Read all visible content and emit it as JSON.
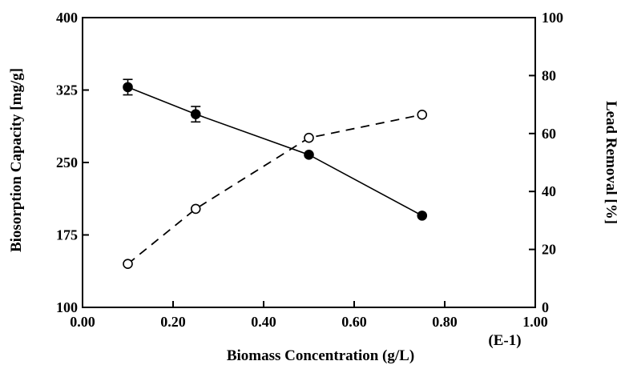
{
  "chart_data": {
    "type": "line",
    "xlabel": "Biomass Concentration (g/L)",
    "x_multiplier_label": "(E-1)",
    "ylabel_left": "Biosorption Capacity [mg/g]",
    "ylabel_right": "Lead Removal [%]",
    "xlim": [
      0,
      1
    ],
    "ylim_left": [
      100,
      400
    ],
    "ylim_right": [
      0,
      100
    ],
    "x_ticks": [
      0,
      0.2,
      0.4,
      0.6,
      0.8,
      1.0
    ],
    "x_tick_labels": [
      "0.00",
      "0.20",
      "0.40",
      "0.60",
      "0.80",
      "1.00"
    ],
    "y_left_ticks": [
      100,
      175,
      250,
      325,
      400
    ],
    "y_left_tick_labels": [
      "100",
      "175",
      "250",
      "325",
      "400"
    ],
    "y_right_ticks": [
      0,
      20,
      40,
      60,
      80,
      100
    ],
    "y_right_tick_labels": [
      "0",
      "20",
      "40",
      "60",
      "80",
      "100"
    ],
    "grid": false,
    "legend": "none",
    "series": [
      {
        "axis": "left",
        "marker": "filled-circle",
        "line": "solid",
        "x": [
          0.1,
          0.25,
          0.5,
          0.75
        ],
        "y": [
          328,
          300,
          258,
          195
        ],
        "error": [
          8,
          8,
          0,
          0
        ]
      },
      {
        "axis": "right",
        "marker": "open-circle",
        "line": "dashed",
        "x": [
          0.1,
          0.25,
          0.5,
          0.75
        ],
        "y": [
          15,
          34,
          58.5,
          66.5
        ]
      }
    ]
  }
}
